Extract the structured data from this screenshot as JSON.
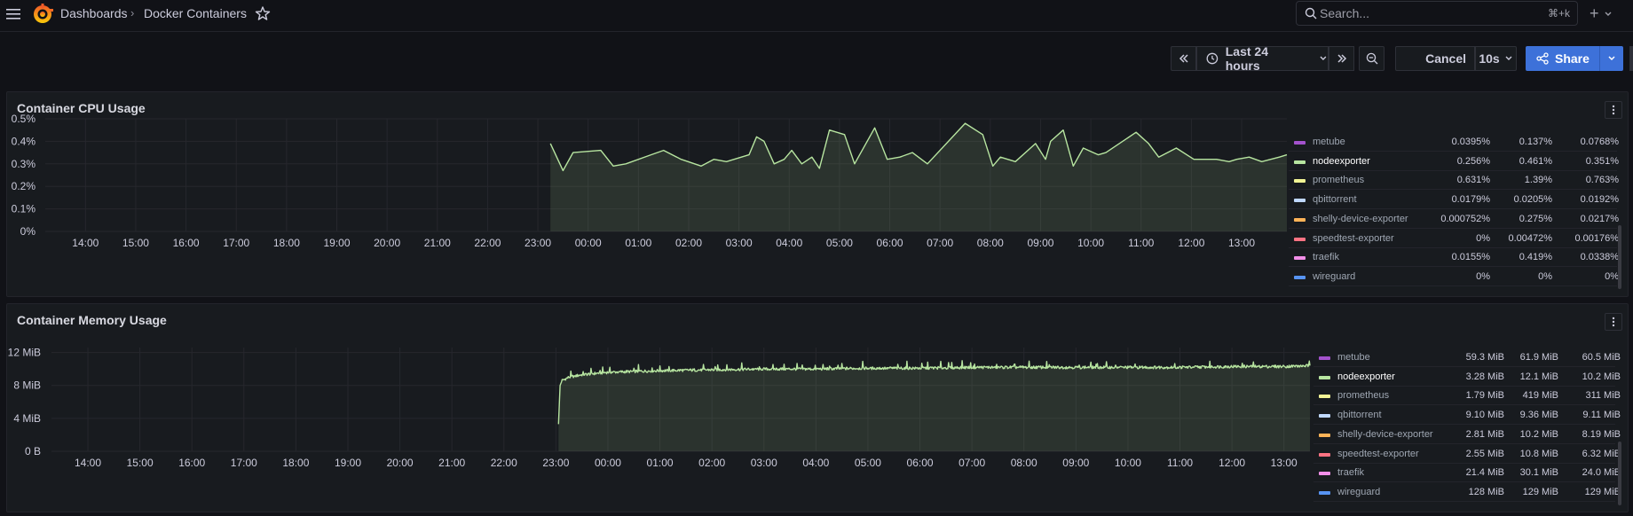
{
  "nav": {
    "breadcrumb_root": "Dashboards",
    "breadcrumb_separator": "›",
    "breadcrumb_current": "Docker Containers",
    "search_placeholder": "Search...",
    "search_shortcut": "⌘+k",
    "new_menu": "+"
  },
  "toolbar": {
    "time_range": "Last 24 hours",
    "cancel_label": "Cancel",
    "refresh_interval": "10s",
    "share_label": "Share"
  },
  "colors": {
    "series_line": "#b7e5a0",
    "accent_blue": "#3d71d9"
  },
  "panels": [
    {
      "title": "Container CPU Usage",
      "legend": [
        {
          "name": "metube",
          "color": "#a352cc",
          "v1": "0.0768%",
          "v2": "0.137%",
          "v3": "0.0395%"
        },
        {
          "name": "nodeexporter",
          "color": "#b7e5a0",
          "v1": "0.351%",
          "v2": "0.461%",
          "v3": "0.256%",
          "highlight": true
        },
        {
          "name": "prometheus",
          "color": "#f2f495",
          "v1": "0.763%",
          "v2": "1.39%",
          "v3": "0.631%"
        },
        {
          "name": "qbittorrent",
          "color": "#c0d8ff",
          "v1": "0.0192%",
          "v2": "0.0205%",
          "v3": "0.0179%"
        },
        {
          "name": "shelly-device-exporter",
          "color": "#ffb357",
          "v1": "0.0217%",
          "v2": "0.275%",
          "v3": "0.000752%"
        },
        {
          "name": "speedtest-exporter",
          "color": "#ff7383",
          "v1": "0.00176%",
          "v2": "0.00472%",
          "v3": "0%"
        },
        {
          "name": "traefik",
          "color": "#f28ee8",
          "v1": "0.0338%",
          "v2": "0.419%",
          "v3": "0.0155%"
        },
        {
          "name": "wireguard",
          "color": "#5794f2",
          "v1": "0%",
          "v2": "0%",
          "v3": "0%"
        }
      ]
    },
    {
      "title": "Container Memory Usage",
      "legend": [
        {
          "name": "metube",
          "color": "#a352cc",
          "v1": "60.5 MiB",
          "v2": "61.9 MiB",
          "v3": "59.3 MiB"
        },
        {
          "name": "nodeexporter",
          "color": "#b7e5a0",
          "v1": "10.2 MiB",
          "v2": "12.1 MiB",
          "v3": "3.28 MiB",
          "highlight": true
        },
        {
          "name": "prometheus",
          "color": "#f2f495",
          "v1": "311 MiB",
          "v2": "419 MiB",
          "v3": "1.79 MiB"
        },
        {
          "name": "qbittorrent",
          "color": "#c0d8ff",
          "v1": "9.11 MiB",
          "v2": "9.36 MiB",
          "v3": "9.10 MiB"
        },
        {
          "name": "shelly-device-exporter",
          "color": "#ffb357",
          "v1": "8.19 MiB",
          "v2": "10.2 MiB",
          "v3": "2.81 MiB"
        },
        {
          "name": "speedtest-exporter",
          "color": "#ff7383",
          "v1": "6.32 MiB",
          "v2": "10.8 MiB",
          "v3": "2.55 MiB"
        },
        {
          "name": "traefik",
          "color": "#f28ee8",
          "v1": "24.0 MiB",
          "v2": "30.1 MiB",
          "v3": "21.4 MiB"
        },
        {
          "name": "wireguard",
          "color": "#5794f2",
          "v1": "129 MiB",
          "v2": "129 MiB",
          "v3": "128 MiB"
        }
      ]
    }
  ],
  "chart_data": [
    {
      "type": "line",
      "title": "Container CPU Usage",
      "y_ticks": [
        "0%",
        "0.1%",
        "0.2%",
        "0.3%",
        "0.4%",
        "0.5%"
      ],
      "ylim": [
        0,
        0.5
      ],
      "x_ticks": [
        "14:00",
        "15:00",
        "16:00",
        "17:00",
        "18:00",
        "19:00",
        "20:00",
        "21:00",
        "22:00",
        "23:00",
        "00:00",
        "01:00",
        "02:00",
        "03:00",
        "04:00",
        "05:00",
        "06:00",
        "07:00",
        "08:00",
        "09:00",
        "10:00",
        "11:00",
        "12:00",
        "13:00"
      ],
      "x_range_hours": [
        13.2,
        37.9
      ],
      "grid": true,
      "series": [
        {
          "name": "nodeexporter",
          "x": [
            23.25,
            23.5,
            23.7,
            24.25,
            24.5,
            24.75,
            25.25,
            25.5,
            25.85,
            26.25,
            26.5,
            26.75,
            27.2,
            27.35,
            27.5,
            27.7,
            27.9,
            28.05,
            28.25,
            28.45,
            28.6,
            28.8,
            29.1,
            29.3,
            29.7,
            29.95,
            30.2,
            30.45,
            30.75,
            31.5,
            31.85,
            32.05,
            32.2,
            32.5,
            32.9,
            33.1,
            33.2,
            33.45,
            33.65,
            33.85,
            34.05,
            34.15,
            34.3,
            34.9,
            35.15,
            35.35,
            35.7,
            36.05,
            36.5,
            36.75,
            36.9,
            37.15,
            37.4,
            37.75,
            37.9
          ],
          "y": [
            0.39,
            0.27,
            0.35,
            0.36,
            0.29,
            0.3,
            0.34,
            0.36,
            0.32,
            0.29,
            0.32,
            0.31,
            0.34,
            0.42,
            0.4,
            0.3,
            0.32,
            0.36,
            0.3,
            0.33,
            0.28,
            0.45,
            0.43,
            0.3,
            0.46,
            0.32,
            0.33,
            0.35,
            0.3,
            0.48,
            0.43,
            0.29,
            0.33,
            0.31,
            0.39,
            0.32,
            0.4,
            0.45,
            0.29,
            0.37,
            0.35,
            0.34,
            0.35,
            0.44,
            0.39,
            0.33,
            0.37,
            0.32,
            0.32,
            0.31,
            0.32,
            0.33,
            0.31,
            0.33,
            0.34
          ]
        }
      ],
      "legend_position": "right"
    },
    {
      "type": "line",
      "title": "Container Memory Usage",
      "y_ticks": [
        "0 B",
        "4 MiB",
        "8 MiB",
        "12 MiB"
      ],
      "ylim": [
        0,
        12.6
      ],
      "x_ticks": [
        "14:00",
        "15:00",
        "16:00",
        "17:00",
        "18:00",
        "19:00",
        "20:00",
        "21:00",
        "22:00",
        "23:00",
        "00:00",
        "01:00",
        "02:00",
        "03:00",
        "04:00",
        "05:00",
        "06:00",
        "07:00",
        "08:00",
        "09:00",
        "10:00",
        "11:00",
        "12:00",
        "13:00"
      ],
      "x_range_hours": [
        13.3,
        37.5
      ],
      "grid": true,
      "series": [
        {
          "name": "nodeexporter",
          "x": [
            23.05,
            23.08,
            23.12,
            23.25,
            23.5,
            24.0,
            25.0,
            26.0,
            27.0,
            28.0,
            29.0,
            30.0,
            31.0,
            32.0,
            33.0,
            34.0,
            35.0,
            36.0,
            37.0,
            37.5
          ],
          "y": [
            3.3,
            8.0,
            8.6,
            9.0,
            9.3,
            9.6,
            9.8,
            9.9,
            10.0,
            10.0,
            10.1,
            10.1,
            10.2,
            10.2,
            10.2,
            10.2,
            10.2,
            10.3,
            10.3,
            10.4
          ],
          "noise_amplitude": 0.35
        }
      ],
      "legend_position": "right"
    }
  ]
}
